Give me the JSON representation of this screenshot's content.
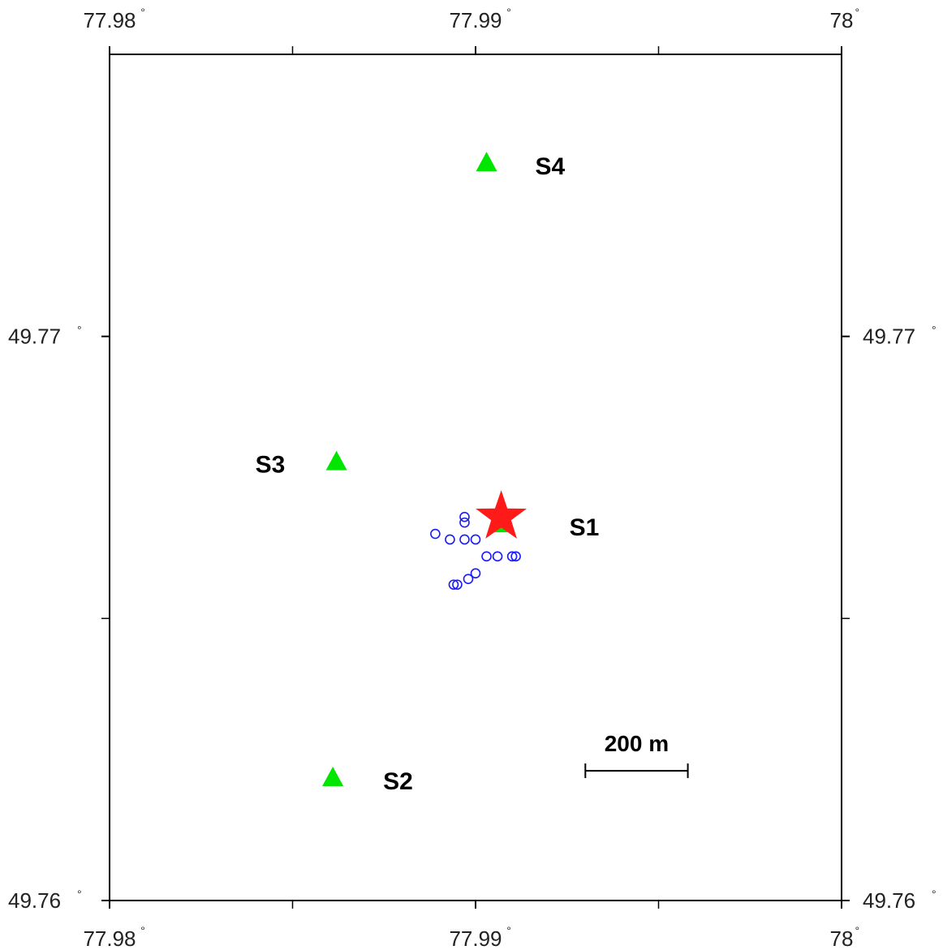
{
  "map": {
    "lon_range": [
      77.98,
      78.0
    ],
    "lat_range": [
      49.76,
      49.775
    ],
    "ticks": {
      "lon": [
        {
          "value": 77.98,
          "label": "77.98"
        },
        {
          "value": 77.99,
          "label": "77.99"
        },
        {
          "value": 78.0,
          "label": "78"
        }
      ],
      "lat": [
        {
          "value": 49.76,
          "label": "49.76"
        },
        {
          "value": 49.77,
          "label": "49.77"
        }
      ],
      "degree_symbol": "°",
      "minor_lon": [
        77.985,
        77.995
      ],
      "minor_lat": [
        49.765
      ]
    },
    "colors": {
      "station": "#00e600",
      "epicenter": "#ff1a1a",
      "events": "#1a1aff",
      "frame": "#000000"
    },
    "stations": [
      {
        "name": "S1",
        "lon": 77.9907,
        "lat": 49.7667
      },
      {
        "name": "S2",
        "lon": 77.9861,
        "lat": 49.7622
      },
      {
        "name": "S3",
        "lon": 77.9862,
        "lat": 49.7678
      },
      {
        "name": "S4",
        "lon": 77.9903,
        "lat": 49.7731
      }
    ],
    "epicenter": {
      "lon": 77.9907,
      "lat": 49.7668,
      "icon": "star-icon"
    },
    "events": [
      {
        "lon": 77.9897,
        "lat": 49.7668
      },
      {
        "lon": 77.9897,
        "lat": 49.7667
      },
      {
        "lon": 77.9889,
        "lat": 49.7665
      },
      {
        "lon": 77.9893,
        "lat": 49.7664
      },
      {
        "lon": 77.9897,
        "lat": 49.7664
      },
      {
        "lon": 77.99,
        "lat": 49.7664
      },
      {
        "lon": 77.9903,
        "lat": 49.7661
      },
      {
        "lon": 77.9906,
        "lat": 49.7661
      },
      {
        "lon": 77.991,
        "lat": 49.7661
      },
      {
        "lon": 77.9911,
        "lat": 49.7661
      },
      {
        "lon": 77.99,
        "lat": 49.7658
      },
      {
        "lon": 77.9898,
        "lat": 49.7657
      },
      {
        "lon": 77.9895,
        "lat": 49.7656
      },
      {
        "lon": 77.9894,
        "lat": 49.7656
      }
    ],
    "scale_bar": {
      "label": "200 m",
      "lon_start": 77.993,
      "lon_end": 77.9958,
      "lat": 49.7623
    }
  }
}
